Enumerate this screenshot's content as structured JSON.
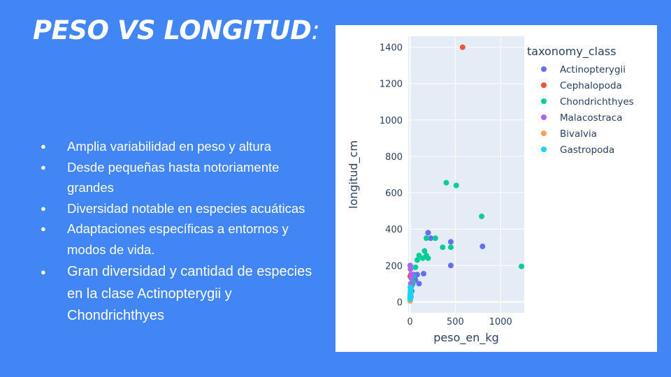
{
  "slide": {
    "title": "PESO VS LONGITUD",
    "title_suffix": ":",
    "bullets": [
      "Amplia variabilidad en peso y altura",
      "Desde pequeñas hasta notoriamente grandes",
      "Diversidad notable en especies acuáticas",
      "Adaptaciones específicas a entornos y modos de vida.",
      "Gran diversidad y cantidad de especies en la clase Actinopterygii y Chondrichthyes"
    ]
  },
  "chart_data": {
    "type": "scatter",
    "xlabel": "peso_en_kg",
    "ylabel": "longitud_cm",
    "xlim": [
      -20,
      1260
    ],
    "ylim": [
      -60,
      1460
    ],
    "xticks": [
      0,
      500,
      1000
    ],
    "yticks": [
      0,
      200,
      400,
      600,
      800,
      1000,
      1200,
      1400
    ],
    "grid": true,
    "legend_title": "taxonomy_class",
    "legend_position": "right",
    "series": [
      {
        "name": "Actinopterygii",
        "color": "#636efa",
        "points": [
          [
            10,
            30
          ],
          [
            20,
            60
          ],
          [
            30,
            100
          ],
          [
            40,
            150
          ],
          [
            60,
            120
          ],
          [
            80,
            150
          ],
          [
            100,
            100
          ],
          [
            150,
            155
          ],
          [
            200,
            380
          ],
          [
            230,
            350
          ],
          [
            450,
            330
          ],
          [
            450,
            200
          ],
          [
            800,
            305
          ],
          [
            50,
            130
          ],
          [
            5,
            20
          ]
        ]
      },
      {
        "name": "Cephalopoda",
        "color": "#ef553b",
        "points": [
          [
            580,
            1400
          ],
          [
            2,
            140
          ],
          [
            10,
            150
          ]
        ]
      },
      {
        "name": "Chondrichthyes",
        "color": "#00cc96",
        "points": [
          [
            30,
            110
          ],
          [
            60,
            190
          ],
          [
            80,
            230
          ],
          [
            100,
            255
          ],
          [
            140,
            240
          ],
          [
            160,
            280
          ],
          [
            180,
            255
          ],
          [
            200,
            240
          ],
          [
            180,
            350
          ],
          [
            280,
            350
          ],
          [
            360,
            300
          ],
          [
            400,
            655
          ],
          [
            450,
            300
          ],
          [
            510,
            640
          ],
          [
            790,
            470
          ],
          [
            1230,
            195
          ],
          [
            20,
            90
          ],
          [
            40,
            140
          ]
        ]
      },
      {
        "name": "Malacostraca",
        "color": "#ab63fa",
        "points": [
          [
            2,
            200
          ],
          [
            5,
            180
          ],
          [
            8,
            100
          ],
          [
            10,
            80
          ],
          [
            15,
            130
          ],
          [
            20,
            150
          ]
        ]
      },
      {
        "name": "Bivalvia",
        "color": "#ffa15a",
        "points": [
          [
            1,
            10
          ],
          [
            2,
            5
          ]
        ]
      },
      {
        "name": "Gastropoda",
        "color": "#19d3f3",
        "points": [
          [
            1,
            15
          ],
          [
            2,
            25
          ],
          [
            3,
            40
          ],
          [
            4,
            50
          ],
          [
            5,
            30
          ],
          [
            6,
            60
          ],
          [
            8,
            45
          ],
          [
            10,
            70
          ],
          [
            3,
            80
          ],
          [
            2,
            35
          ],
          [
            7,
            55
          ]
        ]
      }
    ]
  }
}
